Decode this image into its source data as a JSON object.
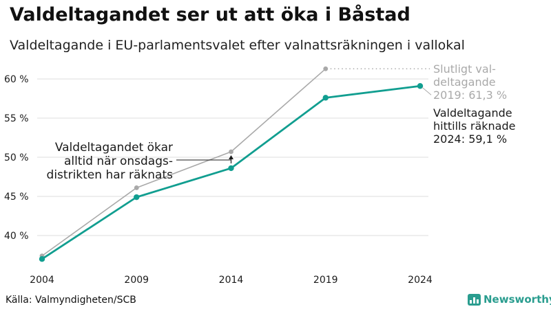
{
  "header": {
    "title": "Valdeltagandet ser ut att öka i Båstad",
    "subtitle": "Valdeltagande i EU-parlamentsvalet efter valnattsräkningen i vallokal"
  },
  "footer": {
    "source": "Källa: Valmyndigheten/SCB",
    "brand": "Newsworthy"
  },
  "colors": {
    "final_series": "#a9a9a9",
    "count_series": "#119e90",
    "grid": "#dcdcdc",
    "brand": "#2a9d8f"
  },
  "chart_data": {
    "type": "line",
    "title": "Valdeltagandet ser ut att öka i Båstad",
    "subtitle": "Valdeltagande i EU-parlamentsvalet efter valnattsräkningen i vallokal",
    "xlabel": "",
    "ylabel": "",
    "x": [
      2004,
      2009,
      2014,
      2019,
      2024
    ],
    "x_tick_labels": [
      "2004",
      "2009",
      "2014",
      "2019",
      "2024"
    ],
    "ylim": [
      36,
      63
    ],
    "y_ticks": [
      40,
      45,
      50,
      55,
      60
    ],
    "y_tick_labels": [
      "40 %",
      "45 %",
      "50 %",
      "55 %",
      "60 %"
    ],
    "grid": true,
    "legend": "none",
    "series": [
      {
        "key": "final",
        "values": [
          37.4,
          46.1,
          50.7,
          61.3,
          null
        ],
        "color": "#a9a9a9"
      },
      {
        "key": "count",
        "values": [
          37.0,
          44.9,
          48.6,
          57.6,
          59.1
        ],
        "color": "#119e90"
      }
    ],
    "annotations": [
      {
        "key": "final-label",
        "lines": [
          "Slutligt val-",
          "deltagande",
          "2019: 61,3 %"
        ],
        "color": "#a9a9a9"
      },
      {
        "key": "count-label",
        "lines": [
          "Valdeltagande",
          "hittills räknade",
          "2024: 59,1 %"
        ],
        "color": "#1a1a1a"
      },
      {
        "key": "gap-note",
        "lines": [
          "Valdeltagandet ökar",
          "alltid när onsdags-",
          "distrikten har räknats"
        ],
        "color": "#1a1a1a"
      }
    ]
  }
}
